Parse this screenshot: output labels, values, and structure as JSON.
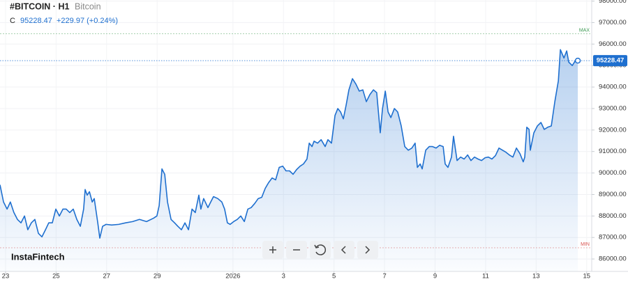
{
  "chart_data": {
    "type": "area",
    "title": "#BITCOIN · H1",
    "subtitle": "Bitcoin",
    "close_label": "C",
    "change": "+229.97 (+0.24%)",
    "watermark": "InstaFintech",
    "color": "#1e6fcf",
    "grid": true,
    "max_line": {
      "label": "MAX",
      "value": 96480,
      "color": "#3c9a52"
    },
    "min_line": {
      "label": "MIN",
      "value": 86520,
      "color": "#d9534f"
    },
    "xlim": [
      22.78,
      46.2
    ],
    "xticks": [
      23,
      25,
      27,
      29,
      {
        "value": 32,
        "label": "2026"
      },
      {
        "value": 34,
        "label": "3"
      },
      {
        "value": 36,
        "label": "5"
      },
      {
        "value": 38,
        "label": "7"
      },
      {
        "value": 40,
        "label": "9"
      },
      {
        "value": 42,
        "label": "11"
      },
      {
        "value": 44,
        "label": "13"
      },
      {
        "value": 46,
        "label": "15"
      }
    ],
    "ylim": [
      85420,
      98050
    ],
    "yticks": [
      {
        "value": 86000,
        "label": "86000.00"
      },
      {
        "value": 87000,
        "label": "87000.00"
      },
      {
        "value": 88000,
        "label": "88000.00"
      },
      {
        "value": 89000,
        "label": "89000.00"
      },
      {
        "value": 90000,
        "label": "90000.00"
      },
      {
        "value": 91000,
        "label": "91000.00"
      },
      {
        "value": 92000,
        "label": "92000.00"
      },
      {
        "value": 93000,
        "label": "93000.00"
      },
      {
        "value": 94000,
        "label": "94000.00"
      },
      {
        "value": 95000,
        "label": "95000.00"
      },
      {
        "value": 96000,
        "label": "96000.00"
      },
      {
        "value": 97000,
        "label": "97000.00"
      },
      {
        "value": 98000,
        "label": "98000.00"
      }
    ],
    "x": [
      22.78,
      22.92,
      23.06,
      23.19,
      23.33,
      23.47,
      23.61,
      23.75,
      23.88,
      24.02,
      24.16,
      24.3,
      24.44,
      24.58,
      24.71,
      24.85,
      24.99,
      25.13,
      25.27,
      25.4,
      25.54,
      25.68,
      25.82,
      25.96,
      26.09,
      26.15,
      26.23,
      26.32,
      26.43,
      26.51,
      26.65,
      26.73,
      26.84,
      26.98,
      27.2,
      27.48,
      27.75,
      28.03,
      28.3,
      28.58,
      28.86,
      28.99,
      29.08,
      29.19,
      29.3,
      29.41,
      29.55,
      29.69,
      29.82,
      29.96,
      30.1,
      30.24,
      30.38,
      30.51,
      30.65,
      30.73,
      30.84,
      31.01,
      31.12,
      31.23,
      31.4,
      31.56,
      31.67,
      31.78,
      31.89,
      32.03,
      32.17,
      32.31,
      32.45,
      32.59,
      32.72,
      32.86,
      33.0,
      33.14,
      33.28,
      33.41,
      33.55,
      33.69,
      33.83,
      33.97,
      34.1,
      34.24,
      34.38,
      34.52,
      34.66,
      34.79,
      34.93,
      35.02,
      35.13,
      35.21,
      35.35,
      35.49,
      35.65,
      35.76,
      35.9,
      36.04,
      36.15,
      36.26,
      36.37,
      36.48,
      36.59,
      36.73,
      36.87,
      37.0,
      37.14,
      37.28,
      37.42,
      37.56,
      37.69,
      37.83,
      37.92,
      38.03,
      38.14,
      38.25,
      38.39,
      38.52,
      38.66,
      38.8,
      38.94,
      39.08,
      39.21,
      39.3,
      39.41,
      39.49,
      39.63,
      39.77,
      39.9,
      40.04,
      40.18,
      40.32,
      40.4,
      40.51,
      40.65,
      40.73,
      40.87,
      41.01,
      41.15,
      41.29,
      41.42,
      41.56,
      41.7,
      41.84,
      41.98,
      42.11,
      42.25,
      42.39,
      42.53,
      42.67,
      42.8,
      42.94,
      43.08,
      43.22,
      43.36,
      43.49,
      43.55,
      43.63,
      43.72,
      43.77,
      43.91,
      44.05,
      44.19,
      44.32,
      44.46,
      44.6,
      44.74,
      44.88,
      44.96,
      45.1,
      45.21,
      45.29,
      45.43,
      45.57,
      45.65
    ],
    "values": [
      89450,
      88650,
      88320,
      88650,
      88160,
      87840,
      87680,
      88000,
      87360,
      87680,
      87840,
      87190,
      87030,
      87360,
      87680,
      87680,
      88320,
      88000,
      88320,
      88320,
      88160,
      88320,
      87840,
      87520,
      88320,
      89230,
      88970,
      89130,
      88650,
      88810,
      87680,
      86970,
      87520,
      87610,
      87580,
      87610,
      87680,
      87740,
      87840,
      87740,
      87900,
      88000,
      88480,
      90190,
      89940,
      88650,
      87840,
      87680,
      87520,
      87360,
      87680,
      87360,
      88320,
      88160,
      88970,
      88320,
      88810,
      88390,
      88650,
      88900,
      88810,
      88650,
      88320,
      87680,
      87610,
      87740,
      87840,
      88000,
      87740,
      88320,
      88390,
      88580,
      88810,
      88870,
      89290,
      89550,
      89770,
      89680,
      90260,
      90320,
      90100,
      90100,
      89940,
      90160,
      90320,
      90420,
      90650,
      91390,
      91230,
      91480,
      91390,
      91550,
      91230,
      91550,
      91390,
      92680,
      93000,
      92840,
      92520,
      93160,
      93870,
      94390,
      94130,
      93810,
      93870,
      93320,
      93650,
      93870,
      93740,
      91870,
      93000,
      93810,
      92840,
      92580,
      93000,
      92840,
      92190,
      91230,
      91060,
      91160,
      91390,
      90260,
      90420,
      90190,
      91060,
      91230,
      91230,
      91160,
      91290,
      91230,
      90420,
      90260,
      90740,
      91710,
      90580,
      90740,
      90650,
      90840,
      90580,
      90740,
      90650,
      90580,
      90710,
      90740,
      90650,
      90810,
      91160,
      91060,
      90970,
      90840,
      90740,
      91160,
      90900,
      90520,
      90740,
      92130,
      92030,
      91060,
      91870,
      92190,
      92350,
      92030,
      92130,
      92190,
      93320,
      94290,
      95740,
      95350,
      95680,
      95160,
      95000,
      95260,
      95228.47
    ]
  }
}
